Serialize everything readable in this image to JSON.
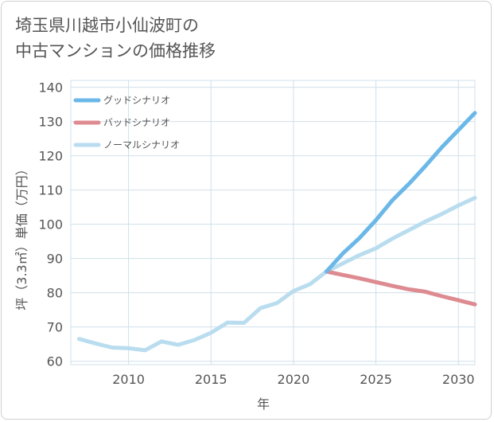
{
  "title_line1": "埼玉県川越市小仙波町の",
  "title_line2": "中古マンションの価格推移",
  "colors": {
    "grid": "#cfe0ea",
    "good": "#6bb8e8",
    "bad": "#dd8b91",
    "normal": "#b9ddef"
  },
  "chart_data": {
    "type": "line",
    "xlabel": "年",
    "ylabel": "坪（3.3㎡）単価（万円）",
    "xlim": [
      2006.5,
      2031
    ],
    "ylim": [
      59,
      142
    ],
    "x_ticks": [
      2010,
      2015,
      2020,
      2025,
      2030
    ],
    "y_ticks": [
      60,
      70,
      80,
      90,
      100,
      110,
      120,
      130,
      140
    ],
    "legend_position": "top-left",
    "history": {
      "x": [
        2007,
        2008,
        2009,
        2010,
        2011,
        2012,
        2013,
        2014,
        2015,
        2016,
        2017,
        2018,
        2019,
        2020,
        2021,
        2022
      ],
      "y": [
        66.5,
        65.2,
        64.0,
        63.8,
        63.2,
        65.8,
        64.8,
        66.2,
        68.3,
        71.3,
        71.2,
        75.5,
        77.0,
        80.5,
        82.5,
        86.2
      ]
    },
    "series": [
      {
        "name": "グッドシナリオ",
        "x": [
          2022,
          2023,
          2024,
          2025,
          2026,
          2027,
          2028,
          2029,
          2030,
          2031
        ],
        "y": [
          86.2,
          91.5,
          96.0,
          101.2,
          107.0,
          111.8,
          117.0,
          122.5,
          127.5,
          132.5
        ]
      },
      {
        "name": "バッドシナリオ",
        "x": [
          2022,
          2023,
          2024,
          2025,
          2026,
          2027,
          2028,
          2029,
          2030,
          2031
        ],
        "y": [
          86.2,
          85.2,
          84.2,
          83.1,
          82.0,
          81.0,
          80.3,
          79.0,
          77.8,
          76.6
        ]
      },
      {
        "name": "ノーマルシナリオ",
        "x": [
          2022,
          2023,
          2024,
          2025,
          2026,
          2027,
          2028,
          2029,
          2030,
          2031
        ],
        "y": [
          86.2,
          88.6,
          91.0,
          93.0,
          95.8,
          98.3,
          100.8,
          103.0,
          105.5,
          107.7
        ]
      }
    ]
  }
}
